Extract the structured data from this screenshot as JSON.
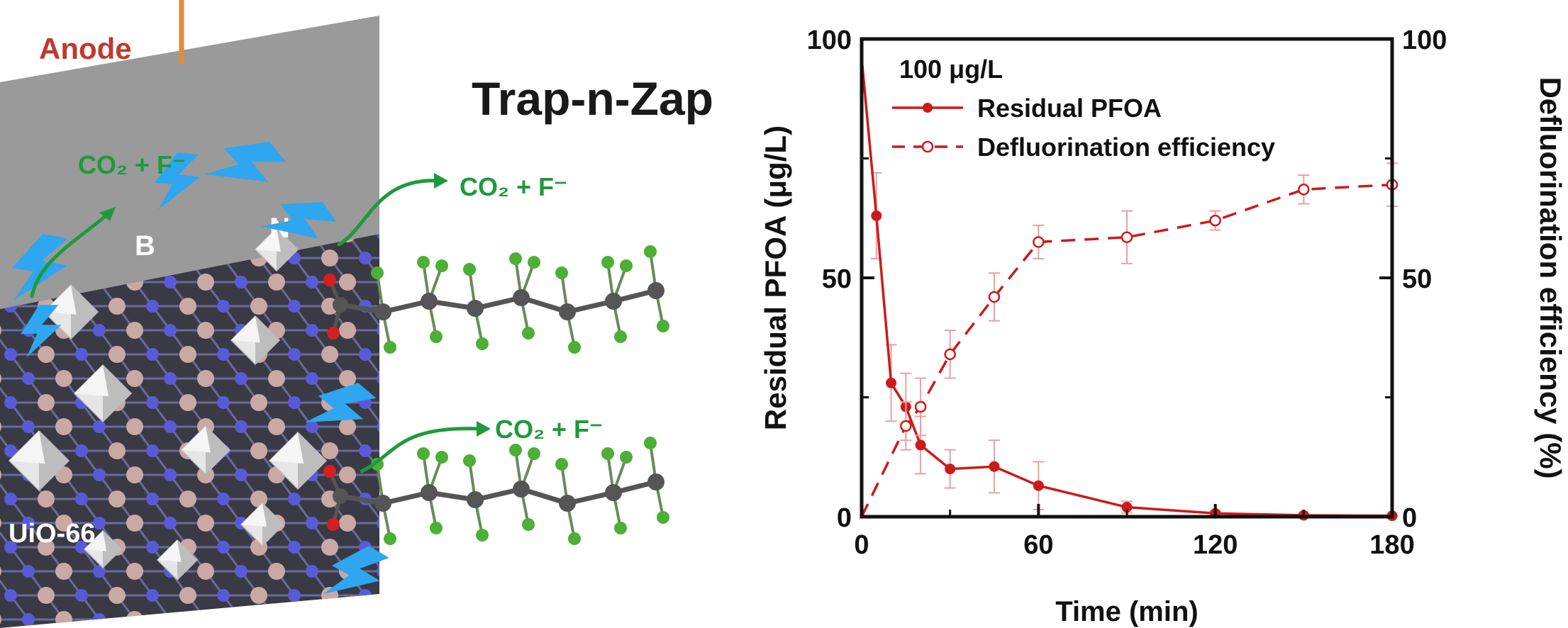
{
  "schematic": {
    "anode_label": "Anode",
    "title": "Trap-n-Zap",
    "element_b": "B",
    "element_n": "N",
    "mof_label": "UiO-66",
    "product_label": "CO₂ + F⁻",
    "colors": {
      "anode": "#c0392b",
      "title": "#1a1a1a",
      "product": "#1e9a3c",
      "lightning": "#2ea6f0",
      "electrode": "#9a9a9a",
      "lattice_bg": "#3a3a45",
      "boron": "#c9a9a4",
      "nitrogen": "#5a5ad8",
      "fluorine": "#4caf36",
      "carbon": "#555555",
      "oxygen": "#d42020"
    }
  },
  "chart_data": {
    "type": "line",
    "title": "",
    "annotation": "100 μg/L",
    "xlabel": "Time (min)",
    "ylabel_left": "Residual PFOA (μg/L)",
    "ylabel_right": "Defluorination efficiency (%)",
    "xlim": [
      0,
      180
    ],
    "ylim_left": [
      0,
      100
    ],
    "ylim_right": [
      0,
      100
    ],
    "x_ticks": [
      "0",
      "60",
      "120",
      "180"
    ],
    "y_ticks_left": [
      "0",
      "50",
      "100"
    ],
    "y_ticks_right": [
      "0",
      "50",
      "100"
    ],
    "legend": {
      "placement": "top-left",
      "entries": [
        "Residual PFOA",
        "Defluorination efficiency"
      ]
    },
    "series": [
      {
        "name": "Residual PFOA",
        "axis": "left",
        "style": "solid-filled",
        "color": "#cc1a1a",
        "x": [
          0,
          5,
          10,
          15,
          20,
          30,
          45,
          60,
          90,
          120,
          150,
          180
        ],
        "y": [
          96,
          63,
          28,
          23,
          15,
          10,
          10.5,
          6.5,
          2,
          0.7,
          0.3,
          0.2
        ],
        "err": [
          0,
          9,
          8,
          7,
          6,
          4,
          5.5,
          5,
          1.2,
          0.5,
          0.3,
          0.2
        ]
      },
      {
        "name": "Defluorination efficiency",
        "axis": "right",
        "style": "dashed-open",
        "color": "#cc1a1a",
        "x": [
          0,
          15,
          20,
          30,
          45,
          60,
          90,
          120,
          150,
          180
        ],
        "y": [
          0,
          19,
          23,
          34,
          46,
          57.5,
          58.5,
          62,
          68.5,
          69.5
        ],
        "err": [
          0,
          5,
          6,
          5,
          5,
          3.5,
          5.5,
          2,
          3,
          4.5
        ]
      }
    ]
  }
}
